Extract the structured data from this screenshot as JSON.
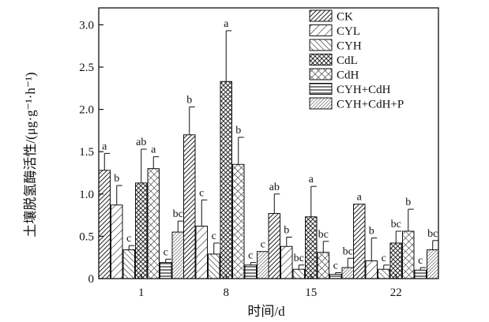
{
  "chart_data": {
    "type": "bar",
    "xlabel": "时间/d",
    "ylabel": "土壤脱氢酶活性/(μg·g⁻¹·h⁻¹)",
    "ylim": [
      0,
      3.2
    ],
    "yticks": [
      "0",
      "0.5",
      "1.0",
      "1.5",
      "2.0",
      "2.5",
      "3.0"
    ],
    "categories": [
      "1",
      "8",
      "15",
      "22"
    ],
    "legend_position": "top-right",
    "grid": false,
    "series": [
      {
        "name": "CK",
        "pattern": "diag-dense",
        "values": [
          1.28,
          1.7,
          0.77,
          0.88
        ],
        "errors": [
          0.2,
          0.33,
          0.23,
          0.0
        ],
        "labels": [
          "a",
          "b",
          "ab",
          "a"
        ]
      },
      {
        "name": "CYL",
        "pattern": "diag-sparse",
        "values": [
          0.87,
          0.62,
          0.38,
          0.21
        ],
        "errors": [
          0.23,
          0.31,
          0.11,
          0.27
        ],
        "labels": [
          "b",
          "c",
          "b",
          "b"
        ]
      },
      {
        "name": "CYH",
        "pattern": "antidiag",
        "values": [
          0.34,
          0.29,
          0.11,
          0.11
        ],
        "errors": [
          0.05,
          0.13,
          0.05,
          0.05
        ],
        "labels": [
          "c",
          "c",
          "bc",
          "c"
        ]
      },
      {
        "name": "CdL",
        "pattern": "crosshatch-dense",
        "values": [
          1.13,
          2.33,
          0.73,
          0.42
        ],
        "errors": [
          0.4,
          0.6,
          0.36,
          0.14
        ],
        "labels": [
          "ab",
          "a",
          "a",
          "bc"
        ]
      },
      {
        "name": "CdH",
        "pattern": "crosshatch-open",
        "values": [
          1.3,
          1.35,
          0.31,
          0.56
        ],
        "errors": [
          0.14,
          0.32,
          0.13,
          0.26
        ],
        "labels": [
          "a",
          "b",
          "bc",
          "b"
        ]
      },
      {
        "name": "CYH+CdH",
        "pattern": "horizontal",
        "values": [
          0.19,
          0.16,
          0.05,
          0.1
        ],
        "errors": [
          0.04,
          0.03,
          0.02,
          0.03
        ],
        "labels": [
          "c",
          "c",
          "c",
          "c"
        ]
      },
      {
        "name": "CYH+CdH+P",
        "pattern": "diag-fine",
        "values": [
          0.55,
          0.32,
          0.13,
          0.34
        ],
        "errors": [
          0.13,
          0.0,
          0.11,
          0.11
        ],
        "labels": [
          "bc",
          "c",
          "bc",
          "bc"
        ]
      }
    ]
  }
}
